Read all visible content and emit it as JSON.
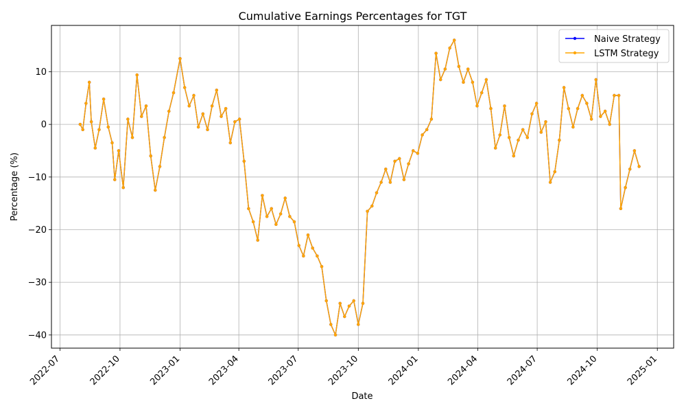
{
  "chart_data": {
    "type": "line",
    "title": "Cumulative Earnings Percentages for TGT",
    "xlabel": "Date",
    "ylabel": "Percentage (%)",
    "xlim": [
      "2022-06-18",
      "2025-01-26"
    ],
    "ylim": [
      -42.5,
      18.8
    ],
    "x_ticks": [
      "2022-07-01",
      "2022-10-01",
      "2023-01-01",
      "2023-04-01",
      "2023-07-01",
      "2023-10-01",
      "2024-01-01",
      "2024-04-01",
      "2024-07-01",
      "2024-10-01",
      "2025-01-01"
    ],
    "x_tick_labels": [
      "2022-07",
      "2022-10",
      "2023-01",
      "2023-04",
      "2023-07",
      "2023-10",
      "2024-01",
      "2024-04",
      "2024-07",
      "2024-10",
      "2025-01"
    ],
    "y_ticks": [
      -40,
      -30,
      -20,
      -10,
      0,
      10
    ],
    "y_tick_labels": [
      "−40",
      "−30",
      "−20",
      "−10",
      "0",
      "10"
    ],
    "grid": true,
    "legend_position": "top-right",
    "series": [
      {
        "name": "Naive Strategy",
        "color": "#0000ff",
        "marker": "circle",
        "points": [
          [
            "2022-08-01",
            0.0
          ],
          [
            "2022-08-05",
            -1.0
          ],
          [
            "2022-08-10",
            4.0
          ],
          [
            "2022-08-15",
            8.0
          ],
          [
            "2022-08-18",
            0.5
          ],
          [
            "2022-08-24",
            -4.5
          ],
          [
            "2022-08-30",
            -1.0
          ],
          [
            "2022-09-06",
            4.8
          ],
          [
            "2022-09-13",
            -0.5
          ],
          [
            "2022-09-19",
            -3.5
          ],
          [
            "2022-09-23",
            -10.5
          ],
          [
            "2022-09-29",
            -5.0
          ],
          [
            "2022-10-06",
            -12.0
          ],
          [
            "2022-10-13",
            1.0
          ],
          [
            "2022-10-20",
            -2.5
          ],
          [
            "2022-10-27",
            9.4
          ],
          [
            "2022-11-03",
            1.5
          ],
          [
            "2022-11-10",
            3.5
          ],
          [
            "2022-11-17",
            -6.0
          ],
          [
            "2022-11-24",
            -12.5
          ],
          [
            "2022-12-01",
            -8.0
          ],
          [
            "2022-12-08",
            -2.5
          ],
          [
            "2022-12-15",
            2.5
          ],
          [
            "2022-12-22",
            6.0
          ],
          [
            "2023-01-01",
            12.5
          ],
          [
            "2023-01-08",
            7.0
          ],
          [
            "2023-01-15",
            3.5
          ],
          [
            "2023-01-22",
            5.5
          ],
          [
            "2023-01-29",
            -0.5
          ],
          [
            "2023-02-05",
            2.0
          ],
          [
            "2023-02-12",
            -1.0
          ],
          [
            "2023-02-19",
            3.5
          ],
          [
            "2023-02-26",
            6.5
          ],
          [
            "2023-03-05",
            1.5
          ],
          [
            "2023-03-12",
            3.0
          ],
          [
            "2023-03-19",
            -3.5
          ],
          [
            "2023-03-26",
            0.5
          ],
          [
            "2023-04-02",
            1.0
          ],
          [
            "2023-04-09",
            -7.0
          ],
          [
            "2023-04-16",
            -16.0
          ],
          [
            "2023-04-23",
            -18.5
          ],
          [
            "2023-04-30",
            -22.0
          ],
          [
            "2023-05-07",
            -13.5
          ],
          [
            "2023-05-14",
            -17.5
          ],
          [
            "2023-05-21",
            -16.0
          ],
          [
            "2023-05-28",
            -19.0
          ],
          [
            "2023-06-04",
            -17.0
          ],
          [
            "2023-06-11",
            -14.0
          ],
          [
            "2023-06-18",
            -17.5
          ],
          [
            "2023-06-25",
            -18.5
          ],
          [
            "2023-07-02",
            -23.0
          ],
          [
            "2023-07-09",
            -25.0
          ],
          [
            "2023-07-16",
            -21.0
          ],
          [
            "2023-07-23",
            -23.5
          ],
          [
            "2023-07-30",
            -25.0
          ],
          [
            "2023-08-06",
            -27.0
          ],
          [
            "2023-08-13",
            -33.5
          ],
          [
            "2023-08-20",
            -38.0
          ],
          [
            "2023-08-27",
            -40.0
          ],
          [
            "2023-09-03",
            -34.0
          ],
          [
            "2023-09-10",
            -36.5
          ],
          [
            "2023-09-17",
            -34.5
          ],
          [
            "2023-09-24",
            -33.5
          ],
          [
            "2023-10-01",
            -38.0
          ],
          [
            "2023-10-08",
            -34.0
          ],
          [
            "2023-10-15",
            -16.5
          ],
          [
            "2023-10-22",
            -15.5
          ],
          [
            "2023-10-29",
            -13.0
          ],
          [
            "2023-11-05",
            -11.0
          ],
          [
            "2023-11-12",
            -8.5
          ],
          [
            "2023-11-19",
            -11.0
          ],
          [
            "2023-11-26",
            -7.0
          ],
          [
            "2023-12-03",
            -6.5
          ],
          [
            "2023-12-10",
            -10.5
          ],
          [
            "2023-12-17",
            -7.5
          ],
          [
            "2023-12-24",
            -5.0
          ],
          [
            "2023-12-31",
            -5.5
          ],
          [
            "2024-01-07",
            -2.0
          ],
          [
            "2024-01-14",
            -1.0
          ],
          [
            "2024-01-21",
            1.0
          ],
          [
            "2024-01-28",
            13.5
          ],
          [
            "2024-02-04",
            8.5
          ],
          [
            "2024-02-11",
            10.5
          ],
          [
            "2024-02-18",
            14.5
          ],
          [
            "2024-02-25",
            16.0
          ],
          [
            "2024-03-03",
            11.0
          ],
          [
            "2024-03-10",
            8.0
          ],
          [
            "2024-03-17",
            10.5
          ],
          [
            "2024-03-24",
            8.0
          ],
          [
            "2024-03-31",
            3.5
          ],
          [
            "2024-04-07",
            6.0
          ],
          [
            "2024-04-14",
            8.5
          ],
          [
            "2024-04-21",
            3.0
          ],
          [
            "2024-04-28",
            -4.5
          ],
          [
            "2024-05-05",
            -2.0
          ],
          [
            "2024-05-12",
            3.5
          ],
          [
            "2024-05-19",
            -2.5
          ],
          [
            "2024-05-26",
            -6.0
          ],
          [
            "2024-06-02",
            -3.0
          ],
          [
            "2024-06-09",
            -1.0
          ],
          [
            "2024-06-16",
            -2.5
          ],
          [
            "2024-06-23",
            2.0
          ],
          [
            "2024-06-30",
            4.0
          ],
          [
            "2024-07-07",
            -1.5
          ],
          [
            "2024-07-14",
            0.5
          ],
          [
            "2024-07-21",
            -11.0
          ],
          [
            "2024-07-28",
            -9.0
          ],
          [
            "2024-08-04",
            -3.0
          ],
          [
            "2024-08-11",
            7.0
          ],
          [
            "2024-08-18",
            3.0
          ],
          [
            "2024-08-25",
            -0.5
          ],
          [
            "2024-09-01",
            3.0
          ],
          [
            "2024-09-08",
            5.5
          ],
          [
            "2024-09-15",
            4.0
          ],
          [
            "2024-09-22",
            1.0
          ],
          [
            "2024-09-29",
            8.5
          ],
          [
            "2024-10-06",
            1.5
          ],
          [
            "2024-10-13",
            2.5
          ],
          [
            "2024-10-20",
            0.0
          ],
          [
            "2024-10-27",
            5.5
          ],
          [
            "2024-11-03",
            5.5
          ],
          [
            "2024-11-06",
            -16.0
          ],
          [
            "2024-11-13",
            -12.0
          ],
          [
            "2024-11-20",
            -8.5
          ],
          [
            "2024-11-27",
            -5.0
          ],
          [
            "2024-12-04",
            -8.0
          ]
        ]
      },
      {
        "name": "LSTM Strategy",
        "color": "#ffa500",
        "marker": "circle",
        "points": [
          [
            "2022-08-01",
            0.0
          ],
          [
            "2022-08-05",
            -1.0
          ],
          [
            "2022-08-10",
            4.0
          ],
          [
            "2022-08-15",
            8.0
          ],
          [
            "2022-08-18",
            0.5
          ],
          [
            "2022-08-24",
            -4.5
          ],
          [
            "2022-08-30",
            -1.0
          ],
          [
            "2022-09-06",
            4.8
          ],
          [
            "2022-09-13",
            -0.5
          ],
          [
            "2022-09-19",
            -3.5
          ],
          [
            "2022-09-23",
            -10.5
          ],
          [
            "2022-09-29",
            -5.0
          ],
          [
            "2022-10-06",
            -12.0
          ],
          [
            "2022-10-13",
            1.0
          ],
          [
            "2022-10-20",
            -2.5
          ],
          [
            "2022-10-27",
            9.4
          ],
          [
            "2022-11-03",
            1.5
          ],
          [
            "2022-11-10",
            3.5
          ],
          [
            "2022-11-17",
            -6.0
          ],
          [
            "2022-11-24",
            -12.5
          ],
          [
            "2022-12-01",
            -8.0
          ],
          [
            "2022-12-08",
            -2.5
          ],
          [
            "2022-12-15",
            2.5
          ],
          [
            "2022-12-22",
            6.0
          ],
          [
            "2023-01-01",
            12.5
          ],
          [
            "2023-01-08",
            7.0
          ],
          [
            "2023-01-15",
            3.5
          ],
          [
            "2023-01-22",
            5.5
          ],
          [
            "2023-01-29",
            -0.5
          ],
          [
            "2023-02-05",
            2.0
          ],
          [
            "2023-02-12",
            -1.0
          ],
          [
            "2023-02-19",
            3.5
          ],
          [
            "2023-02-26",
            6.5
          ],
          [
            "2023-03-05",
            1.5
          ],
          [
            "2023-03-12",
            3.0
          ],
          [
            "2023-03-19",
            -3.5
          ],
          [
            "2023-03-26",
            0.5
          ],
          [
            "2023-04-02",
            1.0
          ],
          [
            "2023-04-09",
            -7.0
          ],
          [
            "2023-04-16",
            -16.0
          ],
          [
            "2023-04-23",
            -18.5
          ],
          [
            "2023-04-30",
            -22.0
          ],
          [
            "2023-05-07",
            -13.5
          ],
          [
            "2023-05-14",
            -17.5
          ],
          [
            "2023-05-21",
            -16.0
          ],
          [
            "2023-05-28",
            -19.0
          ],
          [
            "2023-06-04",
            -17.0
          ],
          [
            "2023-06-11",
            -14.0
          ],
          [
            "2023-06-18",
            -17.5
          ],
          [
            "2023-06-25",
            -18.5
          ],
          [
            "2023-07-02",
            -23.0
          ],
          [
            "2023-07-09",
            -25.0
          ],
          [
            "2023-07-16",
            -21.0
          ],
          [
            "2023-07-23",
            -23.5
          ],
          [
            "2023-07-30",
            -25.0
          ],
          [
            "2023-08-06",
            -27.0
          ],
          [
            "2023-08-13",
            -33.5
          ],
          [
            "2023-08-20",
            -38.0
          ],
          [
            "2023-08-27",
            -40.0
          ],
          [
            "2023-09-03",
            -34.0
          ],
          [
            "2023-09-10",
            -36.5
          ],
          [
            "2023-09-17",
            -34.5
          ],
          [
            "2023-09-24",
            -33.5
          ],
          [
            "2023-10-01",
            -38.0
          ],
          [
            "2023-10-08",
            -34.0
          ],
          [
            "2023-10-15",
            -16.5
          ],
          [
            "2023-10-22",
            -15.5
          ],
          [
            "2023-10-29",
            -13.0
          ],
          [
            "2023-11-05",
            -11.0
          ],
          [
            "2023-11-12",
            -8.5
          ],
          [
            "2023-11-19",
            -11.0
          ],
          [
            "2023-11-26",
            -7.0
          ],
          [
            "2023-12-03",
            -6.5
          ],
          [
            "2023-12-10",
            -10.5
          ],
          [
            "2023-12-17",
            -7.5
          ],
          [
            "2023-12-24",
            -5.0
          ],
          [
            "2023-12-31",
            -5.5
          ],
          [
            "2024-01-07",
            -2.0
          ],
          [
            "2024-01-14",
            -1.0
          ],
          [
            "2024-01-21",
            1.0
          ],
          [
            "2024-01-28",
            13.5
          ],
          [
            "2024-02-04",
            8.5
          ],
          [
            "2024-02-11",
            10.5
          ],
          [
            "2024-02-18",
            14.5
          ],
          [
            "2024-02-25",
            16.0
          ],
          [
            "2024-03-03",
            11.0
          ],
          [
            "2024-03-10",
            8.0
          ],
          [
            "2024-03-17",
            10.5
          ],
          [
            "2024-03-24",
            8.0
          ],
          [
            "2024-03-31",
            3.5
          ],
          [
            "2024-04-07",
            6.0
          ],
          [
            "2024-04-14",
            8.5
          ],
          [
            "2024-04-21",
            3.0
          ],
          [
            "2024-04-28",
            -4.5
          ],
          [
            "2024-05-05",
            -2.0
          ],
          [
            "2024-05-12",
            3.5
          ],
          [
            "2024-05-19",
            -2.5
          ],
          [
            "2024-05-26",
            -6.0
          ],
          [
            "2024-06-02",
            -3.0
          ],
          [
            "2024-06-09",
            -1.0
          ],
          [
            "2024-06-16",
            -2.5
          ],
          [
            "2024-06-23",
            2.0
          ],
          [
            "2024-06-30",
            4.0
          ],
          [
            "2024-07-07",
            -1.5
          ],
          [
            "2024-07-14",
            0.5
          ],
          [
            "2024-07-21",
            -11.0
          ],
          [
            "2024-07-28",
            -9.0
          ],
          [
            "2024-08-04",
            -3.0
          ],
          [
            "2024-08-11",
            7.0
          ],
          [
            "2024-08-18",
            3.0
          ],
          [
            "2024-08-25",
            -0.5
          ],
          [
            "2024-09-01",
            3.0
          ],
          [
            "2024-09-08",
            5.5
          ],
          [
            "2024-09-15",
            4.0
          ],
          [
            "2024-09-22",
            1.0
          ],
          [
            "2024-09-29",
            8.5
          ],
          [
            "2024-10-06",
            1.5
          ],
          [
            "2024-10-13",
            2.5
          ],
          [
            "2024-10-20",
            0.0
          ],
          [
            "2024-10-27",
            5.5
          ],
          [
            "2024-11-03",
            5.5
          ],
          [
            "2024-11-06",
            -16.0
          ],
          [
            "2024-11-13",
            -12.0
          ],
          [
            "2024-11-20",
            -8.5
          ],
          [
            "2024-11-27",
            -5.0
          ],
          [
            "2024-12-04",
            -8.0
          ]
        ]
      }
    ]
  }
}
